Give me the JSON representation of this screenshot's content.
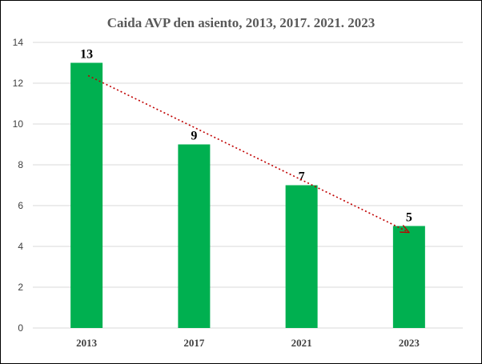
{
  "chart_data": {
    "type": "bar",
    "title": "Caida AVP den asiento, 2013, 2017. 2021. 2023",
    "categories": [
      "2013",
      "2017",
      "2021",
      "2023"
    ],
    "values": [
      13,
      9,
      7,
      5
    ],
    "data_labels": [
      "13",
      "9",
      "7",
      "5"
    ],
    "ylim": [
      0,
      14
    ],
    "yticks": [
      0,
      2,
      4,
      6,
      8,
      10,
      12,
      14
    ],
    "xlabel": "",
    "ylabel": "",
    "grid": true,
    "legend": "none",
    "bar_color": "#00b050",
    "trendline": {
      "style": "dotted arrow",
      "color": "#c00000",
      "from_category": "2013",
      "to_category": "2023"
    }
  }
}
